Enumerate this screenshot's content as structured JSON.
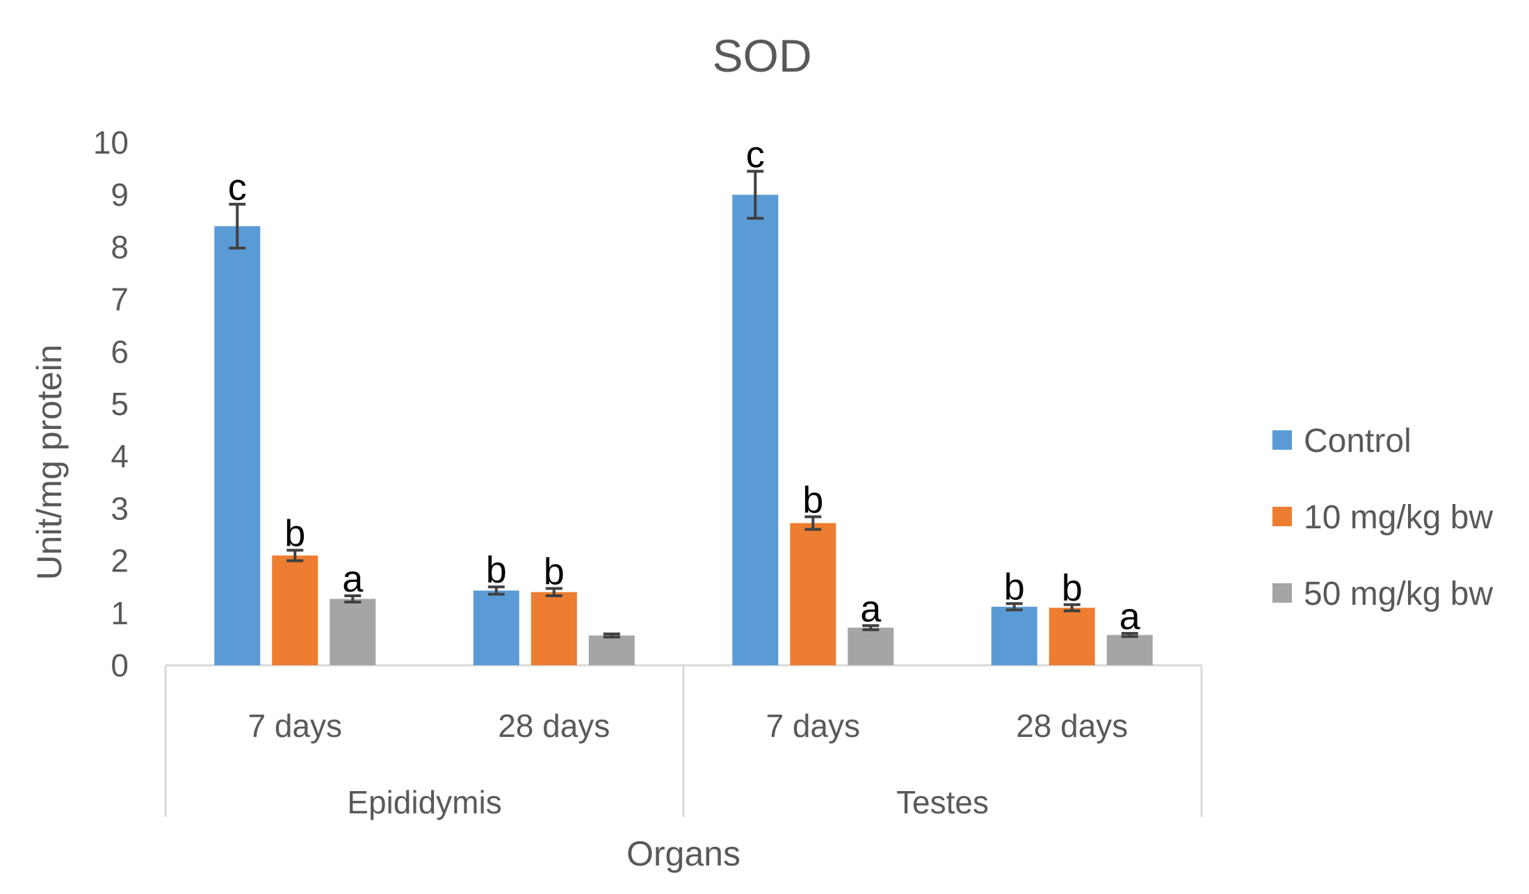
{
  "chart_data": {
    "type": "bar",
    "title": "SOD",
    "ylabel": "Unit/mg protein",
    "xlabel": "Organs",
    "ylim": [
      0,
      10
    ],
    "yticks": [
      0,
      1,
      2,
      3,
      4,
      5,
      6,
      7,
      8,
      9,
      10
    ],
    "groups": [
      {
        "name": "Epididymis",
        "categories": [
          "7 days",
          "28 days"
        ]
      },
      {
        "name": "Testes",
        "categories": [
          "7 days",
          "28 days"
        ]
      }
    ],
    "categories": [
      "7 days",
      "28 days",
      "7 days",
      "28 days"
    ],
    "series": [
      {
        "name": "Control",
        "color": "#5B9BD5",
        "values": [
          8.4,
          1.43,
          9.0,
          1.12
        ],
        "errors": [
          0.42,
          0.07,
          0.45,
          0.06
        ],
        "labels": [
          "c",
          "b",
          "c",
          "b"
        ]
      },
      {
        "name": "10 mg/kg bw",
        "color": "#ED7D31",
        "values": [
          2.1,
          1.4,
          2.72,
          1.1
        ],
        "errors": [
          0.1,
          0.07,
          0.12,
          0.06
        ],
        "labels": [
          "b",
          "b",
          "b",
          "b"
        ]
      },
      {
        "name": "50 mg/kg bw",
        "color": "#A5A5A5",
        "values": [
          1.27,
          0.57,
          0.72,
          0.58
        ],
        "errors": [
          0.06,
          0.03,
          0.04,
          0.03
        ],
        "labels": [
          "a",
          "",
          "a",
          "a"
        ]
      }
    ],
    "legend": "right",
    "grid": false
  }
}
